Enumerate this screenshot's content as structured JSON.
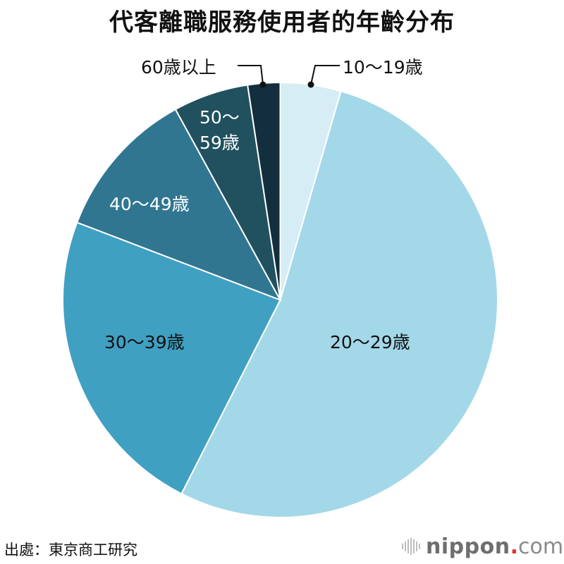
{
  "title": "代客離職服務使用者的年齡分布",
  "source": "出處：東京商工研究",
  "logo": {
    "brand": "nippon",
    "dot": ".",
    "tld": "com",
    "dot_color": "#e8322a",
    "icon": "sound-bars-icon"
  },
  "chart_data": {
    "type": "pie",
    "title": "代客離職服務使用者的年齡分布",
    "start_angle_deg": 0,
    "direction": "clockwise",
    "categories": [
      "10〜19歳",
      "20〜29歳",
      "30〜39歳",
      "40〜49歳",
      "50〜59歳",
      "60歳以上"
    ],
    "values": [
      4.5,
      53.0,
      23.3,
      11.2,
      5.6,
      2.4
    ],
    "unit": "% (estimated from slice angles; no values labeled)",
    "colors": [
      "#d6edf5",
      "#a3d8e9",
      "#3fa0c2",
      "#317690",
      "#21515f",
      "#132f3d"
    ],
    "label_colors": [
      "#111111",
      "#111111",
      "#111111",
      "#ffffff",
      "#ffffff",
      "#111111"
    ],
    "legend": "none (labels placed on/near slices)"
  },
  "labels": {
    "s0": "10〜19歳",
    "s1": "20〜29歳",
    "s2": "30〜39歳",
    "s3": "40〜49歳",
    "s4a": "50〜",
    "s4b": "59歳",
    "s5": "60歳以上"
  }
}
